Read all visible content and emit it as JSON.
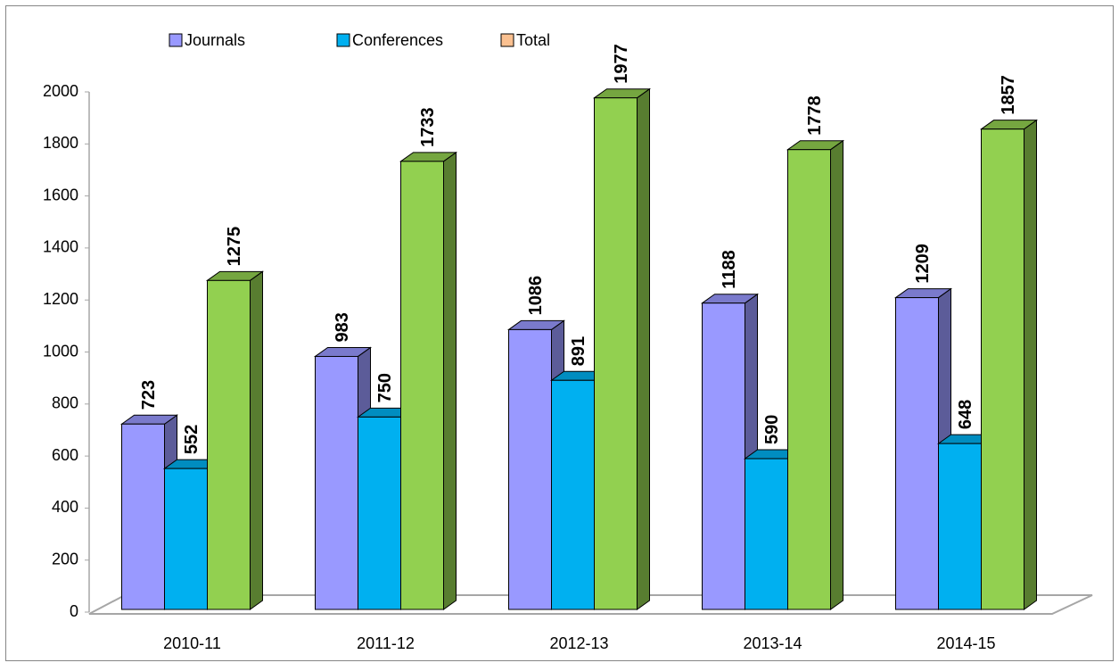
{
  "chart_data": {
    "type": "bar3d",
    "categories": [
      "2010-11",
      "2011-12",
      "2012-13",
      "2013-14",
      "2014-15"
    ],
    "series": [
      {
        "name": "Journals",
        "color": "#9999ff",
        "values": [
          723,
          983,
          1086,
          1188,
          1209
        ]
      },
      {
        "name": "Conferences",
        "color": "#00b0f0",
        "values": [
          552,
          750,
          891,
          590,
          648
        ]
      },
      {
        "name": "Total",
        "color": "#92d050",
        "legend_color": "#fac090",
        "values": [
          1275,
          1733,
          1977,
          1778,
          1857
        ]
      }
    ],
    "ylim": [
      0,
      2000
    ],
    "yticks": [
      0,
      200,
      400,
      600,
      800,
      1000,
      1200,
      1400,
      1600,
      1800,
      2000
    ],
    "grid": false,
    "legend": "top"
  }
}
